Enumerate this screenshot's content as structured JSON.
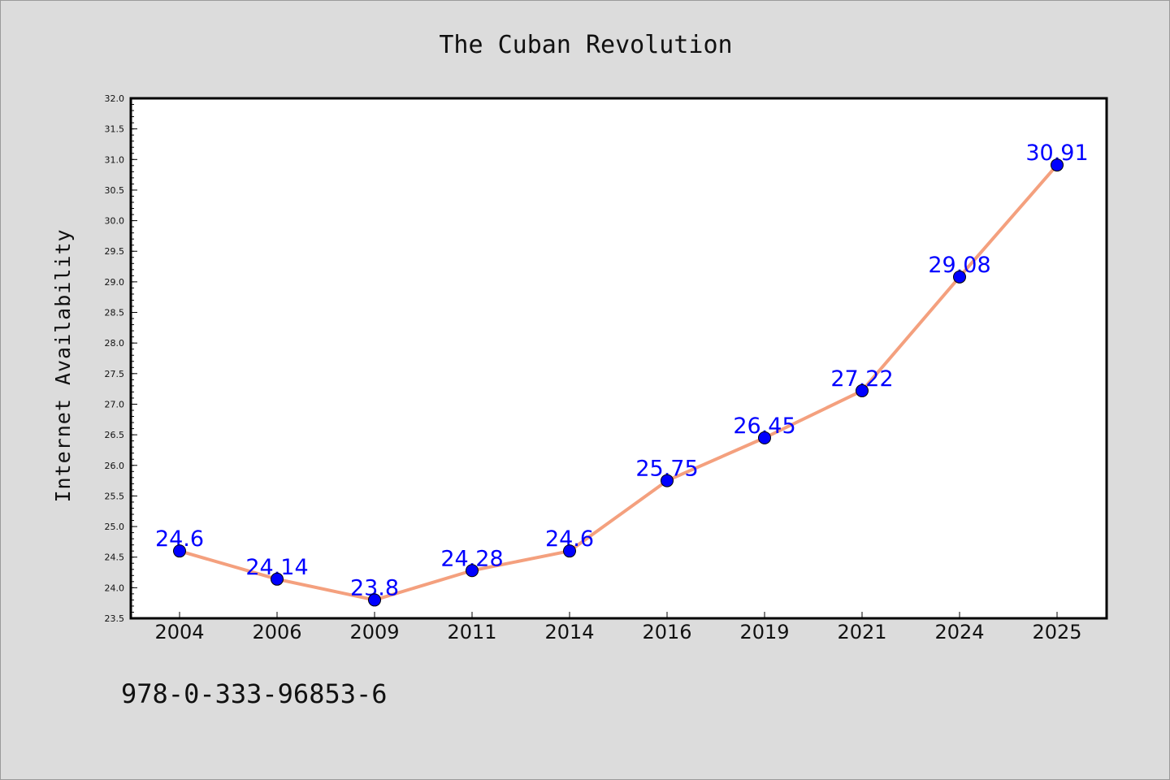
{
  "figure": {
    "title": "The Cuban Revolution",
    "footnote": "978-0-333-96853-6"
  },
  "colors": {
    "background": "#dcdcdc",
    "plot_background": "#ffffff",
    "line": "#f4a07e",
    "marker": "#0000ff",
    "data_label": "#0000ff"
  },
  "chart_data": {
    "type": "line",
    "title": "The Cuban Revolution",
    "xlabel": "",
    "ylabel": "Internet Availability",
    "categories": [
      "2004",
      "2006",
      "2009",
      "2011",
      "2014",
      "2016",
      "2019",
      "2021",
      "2024",
      "2025"
    ],
    "series": [
      {
        "values": [
          24.6,
          24.14,
          23.8,
          24.28,
          24.6,
          25.75,
          26.45,
          27.22,
          29.08,
          30.91
        ],
        "labels": [
          "24.6",
          "24.14",
          "23.8",
          "24.28",
          "24.6",
          "25.75",
          "26.45",
          "27.22",
          "29.08",
          "30.91"
        ]
      }
    ],
    "ylim": [
      23.5,
      32.0
    ],
    "yticks": [
      "23.5",
      "24.0",
      "24.5",
      "25.0",
      "25.5",
      "26.0",
      "26.5",
      "27.0",
      "27.5",
      "28.0",
      "28.5",
      "29.0",
      "29.5",
      "30.0",
      "30.5",
      "31.0",
      "31.5",
      "32.0"
    ],
    "grid": false,
    "legend": "none",
    "markers": "circle"
  }
}
